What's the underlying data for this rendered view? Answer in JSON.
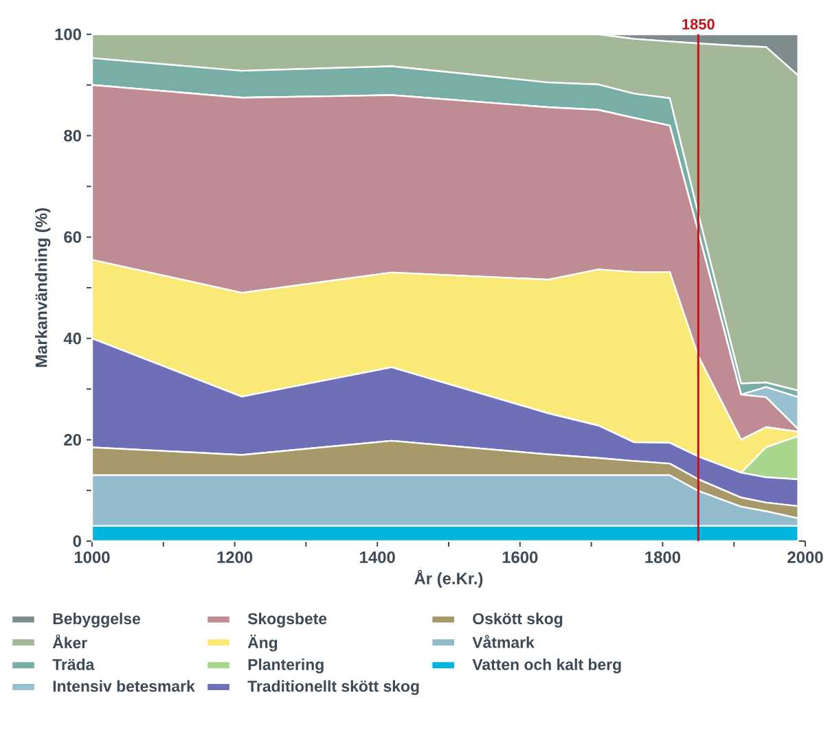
{
  "chart_data": {
    "type": "area",
    "stacked": true,
    "xlabel": "År (e.Kr.)",
    "ylabel": "Markanvändning (%)",
    "x": [
      1000,
      1210,
      1420,
      1640,
      1710,
      1760,
      1810,
      1850,
      1910,
      1945,
      1990
    ],
    "series": [
      {
        "name": "Vatten och kalt berg",
        "color": "#00b4e0",
        "values": [
          3,
          3,
          3,
          3,
          3,
          3,
          3,
          3,
          3,
          3,
          3
        ]
      },
      {
        "name": "Våtmark",
        "color": "#94bbcc",
        "values": [
          10,
          10,
          10,
          10,
          10,
          10,
          10,
          6.9,
          3.8,
          2.9,
          1.5
        ]
      },
      {
        "name": "Oskött skog",
        "color": "#a69869",
        "values": [
          5.5,
          4,
          6.8,
          4.1,
          3.4,
          2.8,
          2.3,
          2.3,
          1.8,
          1.7,
          2.4
        ]
      },
      {
        "name": "Traditionellt skött skog",
        "color": "#6f6fb8",
        "values": [
          21.5,
          11.5,
          14.5,
          8.1,
          6.4,
          3.7,
          4.1,
          4.5,
          4.9,
          5,
          5.3
        ]
      },
      {
        "name": "Plantering",
        "color": "#a8d68c",
        "values": [
          0,
          0,
          0,
          0,
          0,
          0,
          0,
          0,
          0,
          5.9,
          8.5
        ]
      },
      {
        "name": "Äng",
        "color": "#fbe977",
        "values": [
          15.5,
          20.5,
          18.7,
          26.4,
          30.8,
          33.6,
          33.7,
          19.8,
          6.5,
          4,
          0.9
        ]
      },
      {
        "name": "Skogsbete",
        "color": "#c08c93",
        "values": [
          34.5,
          38.5,
          35,
          34,
          31.5,
          30.4,
          28.9,
          24.5,
          8.9,
          5.9,
          0.5
        ]
      },
      {
        "name": "Intensiv betesmark",
        "color": "#98c0cf",
        "values": [
          0,
          0,
          0,
          0,
          0,
          0,
          0,
          0,
          0,
          2,
          6.3
        ]
      },
      {
        "name": "Träda",
        "color": "#79aea7",
        "values": [
          5.3,
          5.3,
          5.7,
          4.9,
          5,
          4.8,
          5.4,
          3.6,
          2.2,
          0.9,
          1.3
        ]
      },
      {
        "name": "Åker",
        "color": "#a3b899",
        "values": [
          4.7,
          7.2,
          6.3,
          9.5,
          9.9,
          10.8,
          11.2,
          33.6,
          66.6,
          66.2,
          62.2
        ]
      },
      {
        "name": "Bebyggelse",
        "color": "#7f8c8d",
        "values": [
          0,
          0,
          0,
          0,
          0,
          0.9,
          1.4,
          1.8,
          2.3,
          2.5,
          8.1
        ]
      }
    ],
    "xlim": [
      1000,
      2000
    ],
    "ylim": [
      0,
      100
    ],
    "xticks": [
      1000,
      {
        "value": 1100,
        "label": null
      },
      1200,
      {
        "value": 1300,
        "label": null
      },
      1400,
      {
        "value": 1500,
        "label": null
      },
      1600,
      {
        "value": 1700,
        "label": null
      },
      1800,
      {
        "value": 1900,
        "label": null
      },
      2000
    ],
    "yticks": [
      0,
      {
        "value": 10,
        "label": null
      },
      20,
      {
        "value": 30,
        "label": null
      },
      40,
      {
        "value": 50,
        "label": null
      },
      60,
      {
        "value": 70,
        "label": null
      },
      80,
      {
        "value": 90,
        "label": null
      },
      100
    ],
    "ref_lines": [
      {
        "axis": "x",
        "value": 1850,
        "label": "1850",
        "color": "#c0141c"
      }
    ],
    "legend": "bottom"
  }
}
